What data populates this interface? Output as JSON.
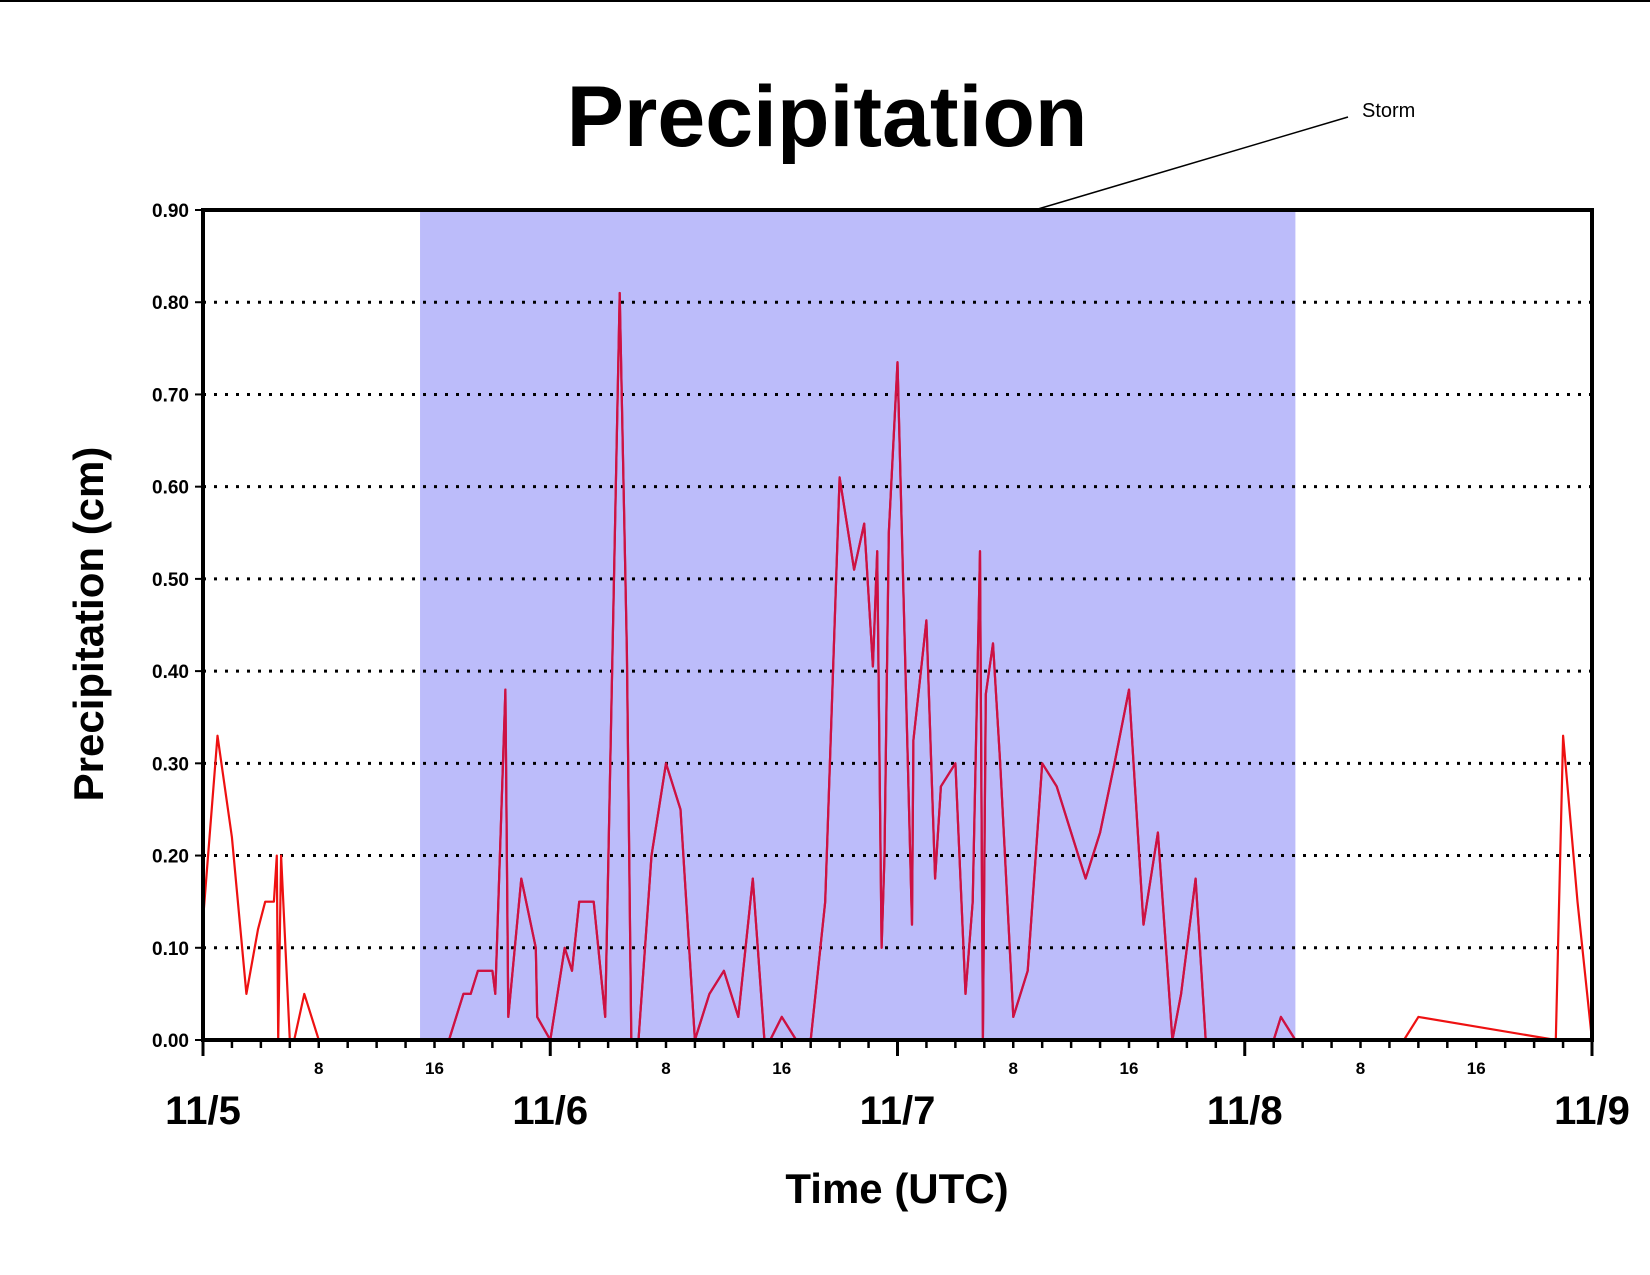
{
  "chart_data": {
    "type": "line",
    "title": "Precipitation",
    "xlabel": "Time (UTC)",
    "ylabel": "Precipitation (cm)",
    "ylim": [
      0,
      0.9
    ],
    "xlim_hours": [
      0,
      96
    ],
    "x_units": "hours from 11/5 00 UTC",
    "y_ticks": [
      "0.00",
      "0.10",
      "0.20",
      "0.30",
      "0.40",
      "0.50",
      "0.60",
      "0.70",
      "0.80",
      "0.90"
    ],
    "x_date_labels": [
      {
        "label": "11/5",
        "hour": 0
      },
      {
        "label": "11/6",
        "hour": 24
      },
      {
        "label": "11/7",
        "hour": 48
      },
      {
        "label": "11/8",
        "hour": 72
      },
      {
        "label": "11/9",
        "hour": 96
      }
    ],
    "x_hour_labels": [
      {
        "label": "8",
        "hour": 8
      },
      {
        "label": "16",
        "hour": 16
      },
      {
        "label": "8",
        "hour": 32
      },
      {
        "label": "16",
        "hour": 40
      },
      {
        "label": "8",
        "hour": 56
      },
      {
        "label": "16",
        "hour": 64
      },
      {
        "label": "8",
        "hour": 80
      },
      {
        "label": "16",
        "hour": 88
      }
    ],
    "grid": "horizontal dotted",
    "storm_shading": {
      "label": "Storm",
      "start_hour": 15,
      "end_hour": 75.5,
      "color": "#bcbcfa"
    },
    "line_color_outside": "#ee1111",
    "line_color_storm": "#cc1144",
    "series": [
      {
        "x": [
          0,
          1,
          2,
          3,
          3.8,
          4.3,
          4.6,
          4.9,
          5.1,
          5.2,
          5.4,
          6.0,
          6.3,
          7.0,
          8.0,
          15.0,
          17.0,
          18.0,
          18.5,
          19.0,
          20.0,
          20.2,
          20.9,
          21.1,
          22.0,
          23.0,
          23.1,
          24.0,
          25.0,
          25.5,
          26.0,
          27.0,
          27.8,
          28.8,
          29.3,
          29.6,
          29.8,
          30.1,
          31.0,
          32.0,
          33.0,
          34.0,
          35.0,
          36.0,
          37.0,
          38.0,
          38.8,
          39.2,
          40.0,
          41.0,
          42.0,
          43.0,
          44.0,
          45.0,
          45.7,
          46.3,
          46.6,
          46.9,
          47.1,
          47.4,
          48.0,
          49.0,
          49.1,
          50.0,
          50.6,
          51.0,
          52.0,
          52.7,
          53.2,
          53.7,
          53.9,
          54.1,
          54.6,
          55.1,
          56.0,
          57.0,
          58.0,
          59.0,
          60.0,
          61.0,
          62.0,
          63.0,
          64.0,
          65.0,
          66.0,
          67.0,
          67.6,
          68.6,
          69.3,
          70.0,
          74.0,
          74.5,
          75.5,
          83.0,
          84.0,
          93.5,
          94.0,
          95.0,
          96.0
        ],
        "y": [
          0.13,
          0.33,
          0.22,
          0.05,
          0.12,
          0.15,
          0.15,
          0.15,
          0.2,
          0.0,
          0.2,
          0.0,
          0.0,
          0.05,
          0.0,
          0.0,
          0.0,
          0.05,
          0.05,
          0.075,
          0.075,
          0.05,
          0.38,
          0.025,
          0.175,
          0.1,
          0.025,
          0.0,
          0.1,
          0.075,
          0.15,
          0.15,
          0.025,
          0.81,
          0.42,
          0.0,
          0.0,
          0.0,
          0.2,
          0.3,
          0.25,
          0.0,
          0.05,
          0.075,
          0.025,
          0.175,
          0.0,
          0.0,
          0.025,
          0.0,
          0.0,
          0.15,
          0.61,
          0.51,
          0.56,
          0.405,
          0.53,
          0.1,
          0.2,
          0.55,
          0.735,
          0.125,
          0.325,
          0.455,
          0.175,
          0.275,
          0.3,
          0.05,
          0.15,
          0.53,
          0.0,
          0.375,
          0.43,
          0.3,
          0.025,
          0.075,
          0.3,
          0.275,
          0.225,
          0.175,
          0.225,
          0.3,
          0.38,
          0.125,
          0.225,
          0.0,
          0.05,
          0.175,
          0.0,
          0.0,
          0.0,
          0.025,
          0.0,
          0.0,
          0.025,
          0.0,
          0.33,
          0.15,
          0.0
        ]
      }
    ]
  }
}
